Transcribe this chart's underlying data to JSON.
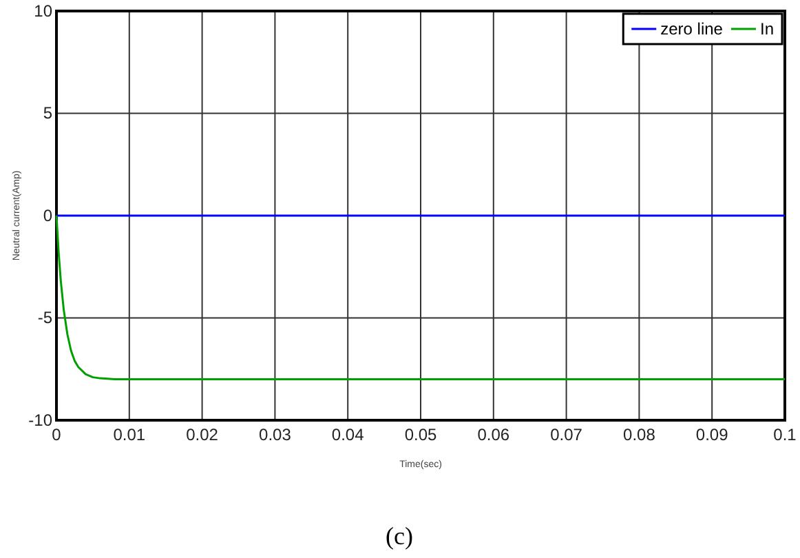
{
  "chart_data": {
    "type": "line",
    "xlabel": "Time(sec)",
    "ylabel": "Neutral current(Amp)",
    "annotations": [
      "(c)"
    ],
    "xlim": [
      0,
      0.1
    ],
    "ylim": [
      -10,
      10
    ],
    "xticks": [
      0,
      0.01,
      0.02,
      0.03,
      0.04,
      0.05,
      0.06,
      0.07,
      0.08,
      0.09,
      0.1
    ],
    "yticks": [
      -10,
      -5,
      0,
      5,
      10
    ],
    "grid": true,
    "legend": "top right",
    "line_style": "solid",
    "marker": "none",
    "series": [
      {
        "name": "zero line",
        "color": "#0000ff",
        "x": [
          0,
          0.046,
          0.1
        ],
        "values": [
          0,
          0,
          0
        ]
      },
      {
        "name": "In",
        "color": "#00a000",
        "x": [
          0,
          0.0003,
          0.0006,
          0.001,
          0.0015,
          0.002,
          0.0025,
          0.003,
          0.004,
          0.005,
          0.006,
          0.008,
          0.1
        ],
        "values": [
          0,
          -1.8,
          -3.2,
          -4.6,
          -5.8,
          -6.6,
          -7.1,
          -7.4,
          -7.75,
          -7.9,
          -7.95,
          -8,
          -8
        ]
      }
    ]
  }
}
